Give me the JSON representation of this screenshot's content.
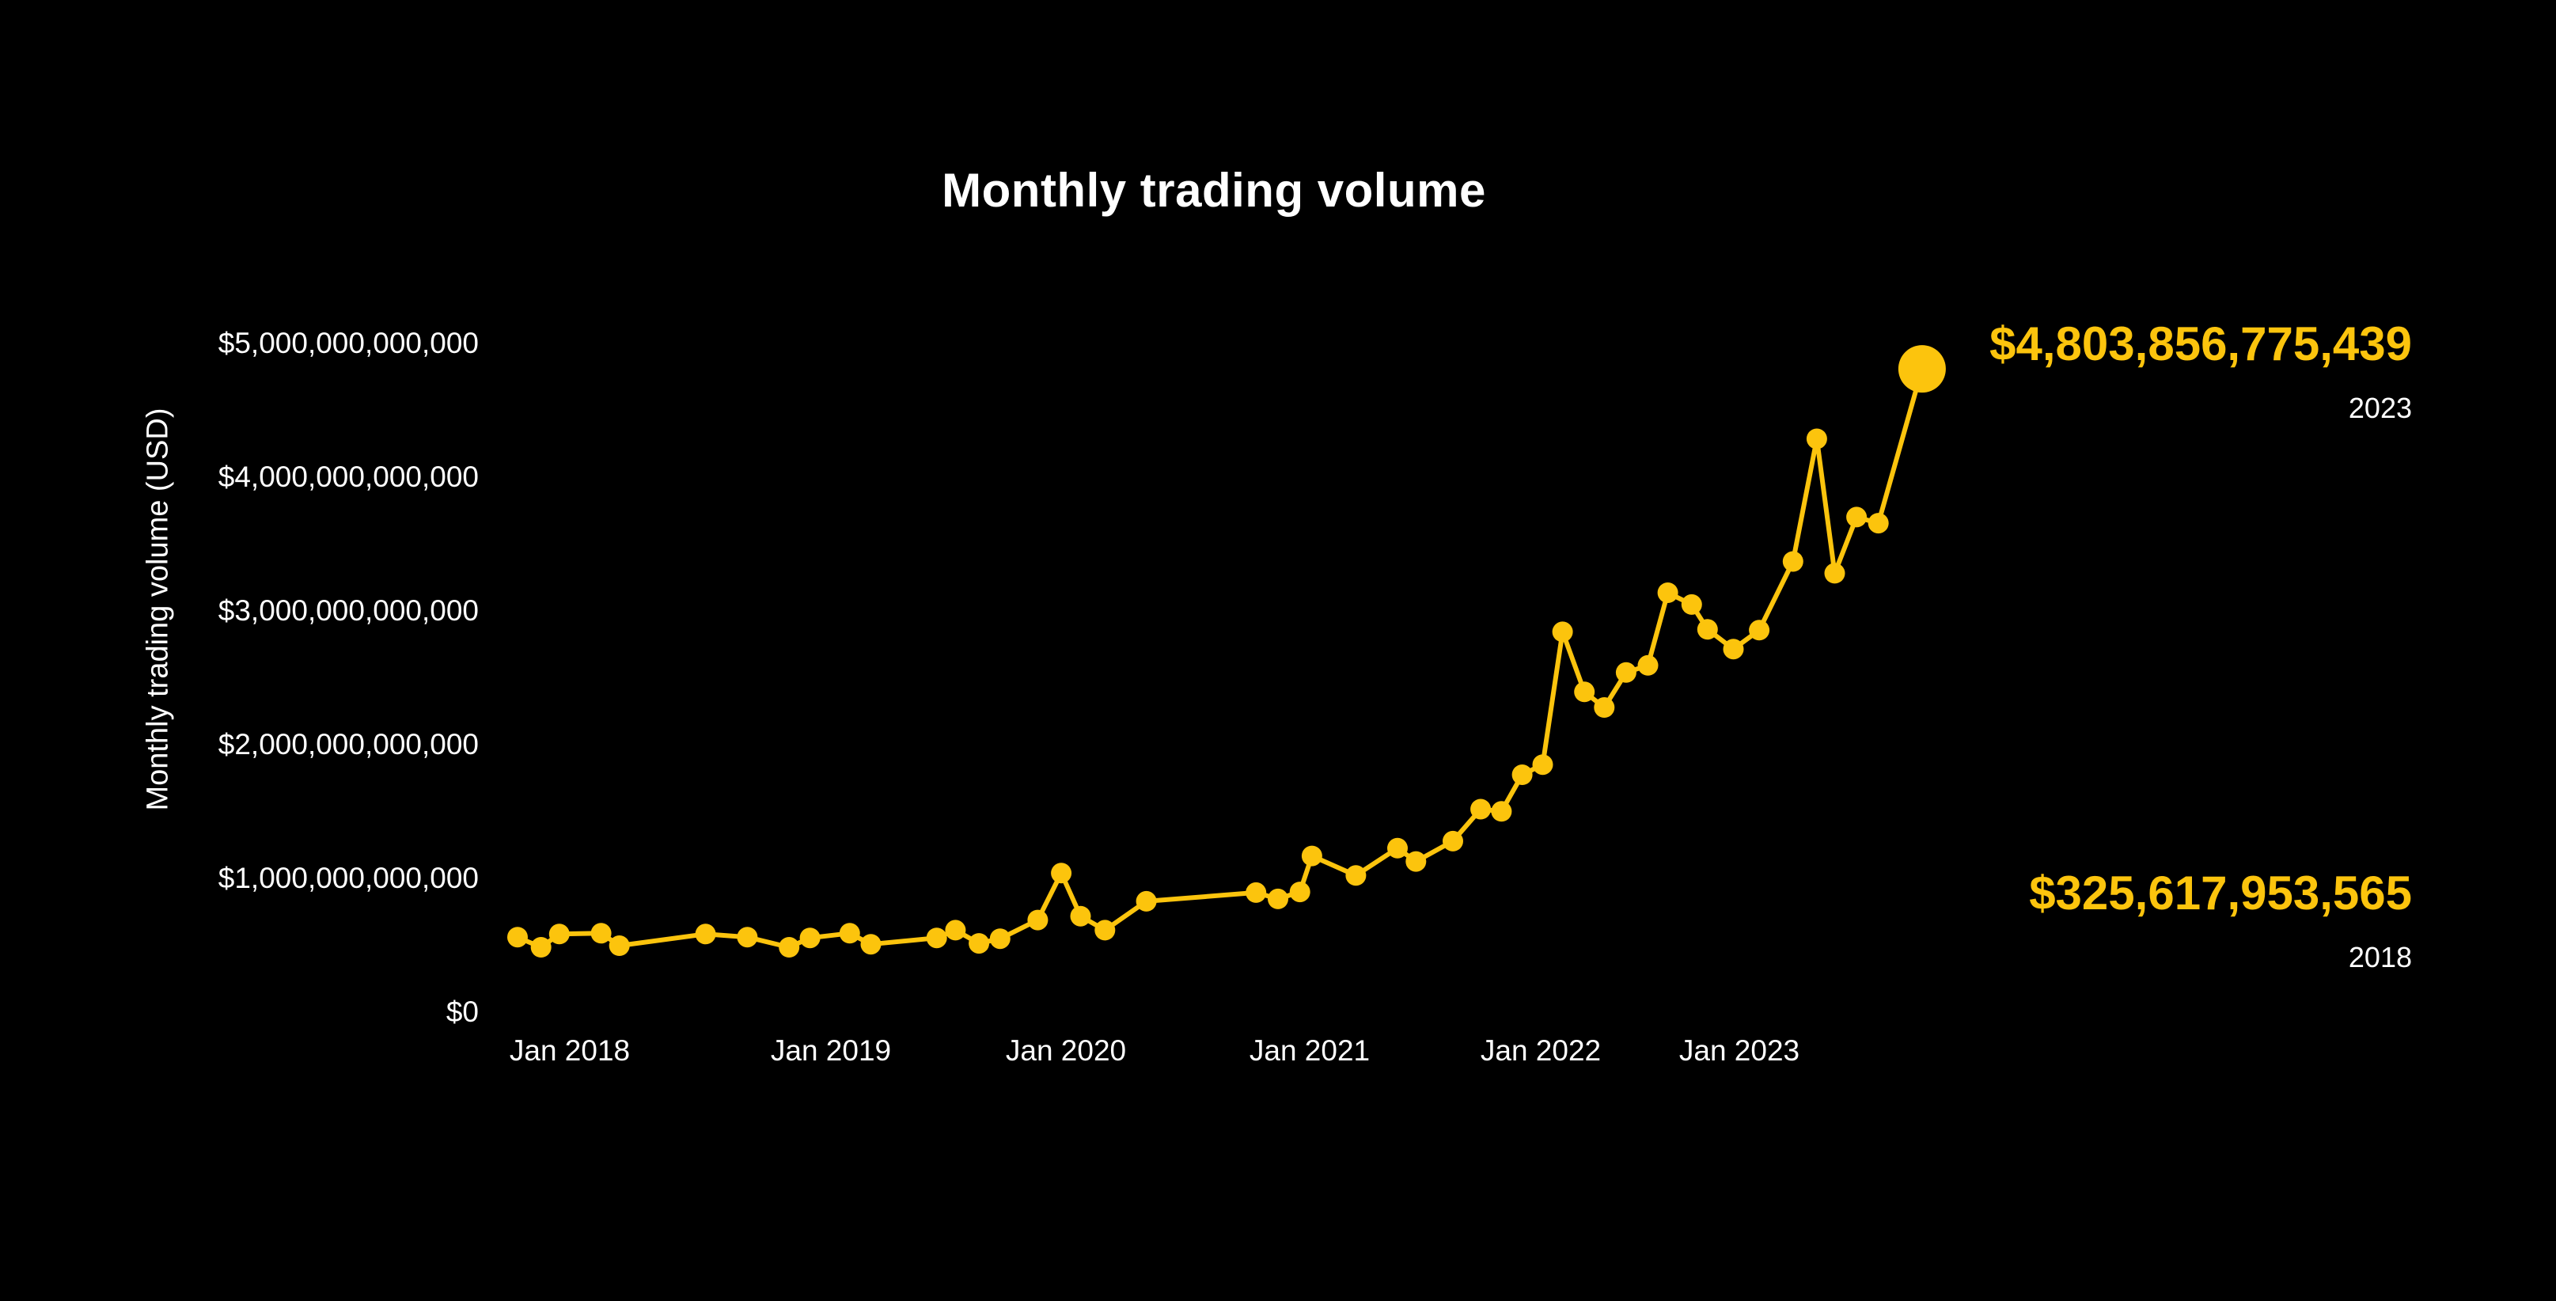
{
  "page": {
    "background_color": "#000000",
    "text_color": "#ffffff",
    "accent_color": "#fcc40d"
  },
  "chart_data": {
    "type": "line",
    "title": "Monthly trading volume",
    "xlabel": "",
    "ylabel": "Monthly trading volume (USD)",
    "grid": false,
    "legend_position": "none",
    "line_color": "#fcc40d",
    "marker_color": "#fcc40d",
    "x_axis_years_range": [
      2017.7,
      2024.0
    ],
    "ylim_usd_billions": [
      0,
      5000
    ],
    "y_ticks": [
      {
        "value_billions": 0,
        "label": "$0"
      },
      {
        "value_billions": 1000,
        "label": "$1,000,000,000,000"
      },
      {
        "value_billions": 2000,
        "label": "$2,000,000,000,000"
      },
      {
        "value_billions": 3000,
        "label": "$3,000,000,000,000"
      },
      {
        "value_billions": 4000,
        "label": "$4,000,000,000,000"
      },
      {
        "value_billions": 5000,
        "label": "$5,000,000,000,000"
      }
    ],
    "x_ticks": [
      {
        "year": 2018,
        "label": "Jan 2018"
      },
      {
        "year": 2019,
        "label": "Jan 2019"
      },
      {
        "year": 2020,
        "label": "Jan 2020"
      },
      {
        "year": 2021,
        "label": "Jan 2021"
      },
      {
        "year": 2022,
        "label": "Jan 2022"
      },
      {
        "year": 2023,
        "label": "Jan 2023"
      }
    ],
    "series": [
      {
        "name": "Monthly trading volume",
        "points_year_valueBillionsUSD": [
          [
            2017.8,
            555
          ],
          [
            2017.89,
            479
          ],
          [
            2017.96,
            578
          ],
          [
            2018.12,
            584
          ],
          [
            2018.19,
            491
          ],
          [
            2018.52,
            578
          ],
          [
            2018.68,
            555
          ],
          [
            2018.84,
            479
          ],
          [
            2018.92,
            549
          ],
          [
            2019.08,
            584
          ],
          [
            2019.17,
            502
          ],
          [
            2019.45,
            549
          ],
          [
            2019.53,
            607
          ],
          [
            2019.63,
            508
          ],
          [
            2019.72,
            543
          ],
          [
            2019.88,
            683
          ],
          [
            2019.98,
            1034
          ],
          [
            2020.06,
            712
          ],
          [
            2020.16,
            607
          ],
          [
            2020.33,
            823
          ],
          [
            2020.78,
            888
          ],
          [
            2020.87,
            841
          ],
          [
            2020.96,
            893
          ],
          [
            2021.01,
            1162
          ],
          [
            2021.2,
            1016
          ],
          [
            2021.38,
            1220
          ],
          [
            2021.46,
            1121
          ],
          [
            2021.62,
            1273
          ],
          [
            2021.74,
            1512
          ],
          [
            2021.83,
            1495
          ],
          [
            2021.92,
            1769
          ],
          [
            2022.01,
            1845
          ],
          [
            2022.11,
            2838
          ],
          [
            2022.22,
            2389
          ],
          [
            2022.32,
            2272
          ],
          [
            2022.43,
            2534
          ],
          [
            2022.54,
            2587
          ],
          [
            2022.64,
            3130
          ],
          [
            2022.76,
            3042
          ],
          [
            2022.84,
            2856
          ],
          [
            2022.97,
            2709
          ],
          [
            2023.1,
            2850
          ],
          [
            2023.27,
            3364
          ],
          [
            2023.39,
            4281
          ],
          [
            2023.48,
            3276
          ],
          [
            2023.59,
            3696
          ],
          [
            2023.7,
            3650
          ],
          [
            2023.92,
            4804
          ]
        ]
      }
    ],
    "annotations": [
      {
        "text": "$4,803,856,775,439",
        "subtext": "2023",
        "color": "#fcc40d",
        "attached_to": "final-point"
      },
      {
        "text": "$325,617,953,565",
        "subtext": "2018",
        "color": "#fcc40d",
        "attached_to": "bottom-right"
      }
    ]
  }
}
